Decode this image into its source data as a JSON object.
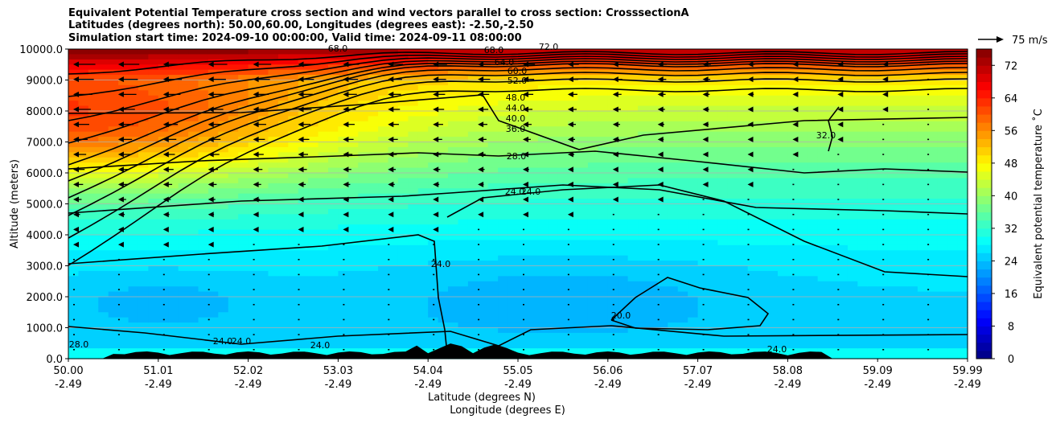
{
  "title_lines": [
    "Equivalent Potential Temperature cross section and wind vectors parallel to cross section: CrosssectionA",
    "Latitudes (degrees north): 50.00,60.00, Longitudes (degrees east): -2.50,-2.50",
    "Simulation start time: 2024-09-10 00:00:00, Valid time: 2024-09-11 08:00:00"
  ],
  "chart_data": {
    "type": "heatmap",
    "title": "Equivalent Potential Temperature cross section and wind vectors parallel to cross section: CrosssectionA",
    "ylabel": "Altitude (meters)",
    "xlabel_lines": [
      "Latitude (degrees N)",
      "Longitude (degrees E)"
    ],
    "ylim": [
      0,
      10000
    ],
    "y_ticks": [
      "0.0",
      "1000.0",
      "2000.0",
      "3000.0",
      "4000.0",
      "5000.0",
      "6000.0",
      "7000.0",
      "8000.0",
      "9000.0",
      "10000.0"
    ],
    "x_ticks": [
      {
        "lat": "50.00",
        "lon": "-2.49"
      },
      {
        "lat": "51.01",
        "lon": "-2.49"
      },
      {
        "lat": "52.02",
        "lon": "-2.49"
      },
      {
        "lat": "53.03",
        "lon": "-2.49"
      },
      {
        "lat": "54.04",
        "lon": "-2.49"
      },
      {
        "lat": "55.05",
        "lon": "-2.49"
      },
      {
        "lat": "56.06",
        "lon": "-2.49"
      },
      {
        "lat": "57.07",
        "lon": "-2.49"
      },
      {
        "lat": "58.08",
        "lon": "-2.49"
      },
      {
        "lat": "59.09",
        "lon": "-2.49"
      },
      {
        "lat": "59.99",
        "lon": "-2.49"
      }
    ],
    "grid": "horizontal",
    "colorbar": {
      "label": "Equivalent potential temperature ˚C",
      "ticks": [
        "0",
        "8",
        "16",
        "24",
        "32",
        "40",
        "48",
        "56",
        "64",
        "72"
      ],
      "range": [
        0,
        76
      ]
    },
    "wind_key": {
      "label": "75 m/s"
    },
    "contour_labels": [
      "68.0",
      "64.0",
      "60.0",
      "52.0",
      "48.0",
      "44.0",
      "40.0",
      "36.0",
      "28.0",
      "24.0",
      "24.0",
      "24.0",
      "20.0",
      "32.0",
      "28.0",
      "24.0",
      "24.0",
      "24.0",
      "24.0",
      "68.0",
      "72.0"
    ],
    "terrain_note": "terrain silhouette along bottom"
  }
}
